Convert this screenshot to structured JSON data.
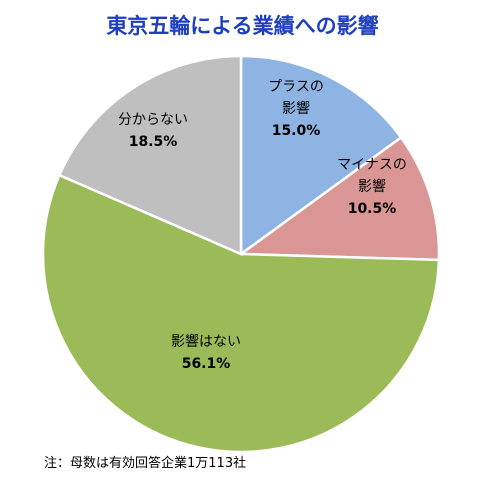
{
  "title": "東京五輪による業績への影響",
  "footnote": "注：母数は有効回答企業1万113社",
  "colors": {
    "title": "#1f3fbf",
    "plus": "#8db4e2",
    "minus": "#da9694",
    "none": "#9bbb59",
    "unknown": "#bfbfbf",
    "border": "#ffffff"
  },
  "chart_data": {
    "type": "pie",
    "title": "東京五輪による業績への影響",
    "start": "12 o'clock, clockwise",
    "slices": [
      {
        "label_lines": [
          "プラスの",
          "影響"
        ],
        "value": 15.0,
        "value_label": "15.0%",
        "color": "#8db4e2"
      },
      {
        "label_lines": [
          "マイナスの",
          "影響"
        ],
        "value": 10.5,
        "value_label": "10.5%",
        "color": "#da9694"
      },
      {
        "label_lines": [
          "影響はない"
        ],
        "value": 56.1,
        "value_label": "56.1%",
        "color": "#9bbb59"
      },
      {
        "label_lines": [
          "分からない"
        ],
        "value": 18.5,
        "value_label": "18.5%",
        "color": "#bfbfbf"
      }
    ]
  }
}
